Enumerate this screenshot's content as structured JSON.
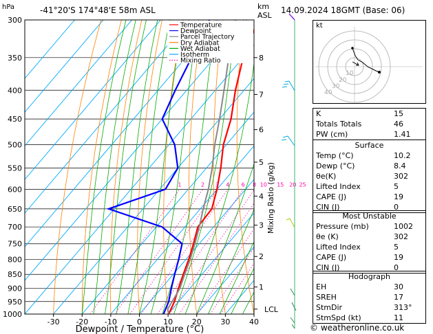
{
  "header": {
    "hpa_label": "hPa",
    "location": "-41°20'S  174°48'E  58m  ASL",
    "km_label": "km",
    "asl_label": "ASL",
    "datetime": "14.09.2024  18GMT  (Base: 06)"
  },
  "footer": {
    "xlabel": "Dewpoint / Temperature (°C)",
    "copyright": "© weatheronline.co.uk"
  },
  "chart_data": {
    "type": "line",
    "subtype": "skew-T log-P diagram",
    "pressure_levels": [
      300,
      350,
      400,
      450,
      500,
      550,
      600,
      650,
      700,
      750,
      800,
      850,
      900,
      950,
      1000
    ],
    "x_ticks": [
      -30,
      -20,
      -10,
      0,
      10,
      20,
      30,
      40
    ],
    "xlim": [
      -40,
      40
    ],
    "ylim": [
      1000,
      300
    ],
    "xlabel": "Dewpoint / Temperature (°C)",
    "ylabel": "hPa",
    "height_km_ticks": [
      {
        "label": "8",
        "p": 350
      },
      {
        "label": "7",
        "p": 407
      },
      {
        "label": "6",
        "p": 470
      },
      {
        "label": "5",
        "p": 537
      },
      {
        "label": "4",
        "p": 617
      },
      {
        "label": "3",
        "p": 695
      },
      {
        "label": "2",
        "p": 790
      },
      {
        "label": "1",
        "p": 895
      },
      {
        "label": "LCL",
        "p": 980
      }
    ],
    "mixing_ratio_label": "Mixing Ratio (g/kg)",
    "mixing_ratio_values": [
      "1",
      "2",
      "3",
      "4",
      "6",
      "8",
      "10",
      "15",
      "20",
      "25"
    ],
    "legend": [
      {
        "name": "Temperature",
        "color": "#ff0000"
      },
      {
        "name": "Dewpoint",
        "color": "#0000ff"
      },
      {
        "name": "Parcel Trajectory",
        "color": "#888888"
      },
      {
        "name": "Dry Adiabat",
        "color": "#ff8000"
      },
      {
        "name": "Wet Adiabat",
        "color": "#00aa00"
      },
      {
        "name": "Isotherm",
        "color": "#00aaff"
      },
      {
        "name": "Mixing Ratio",
        "color": "#ff00aa"
      }
    ],
    "legend_position": "top-center",
    "series": [
      {
        "name": "Temperature",
        "color": "#ff0000",
        "points": [
          [
            10.2,
            1000
          ],
          [
            8.5,
            950
          ],
          [
            6,
            900
          ],
          [
            3.5,
            850
          ],
          [
            1,
            800
          ],
          [
            -2,
            750
          ],
          [
            -5.5,
            700
          ],
          [
            -6,
            650
          ],
          [
            -10,
            600
          ],
          [
            -15,
            550
          ],
          [
            -21,
            500
          ],
          [
            -26,
            450
          ],
          [
            -33,
            400
          ],
          [
            -40,
            350
          ],
          [
            -46,
            300
          ]
        ]
      },
      {
        "name": "Dewpoint",
        "color": "#0000ff",
        "points": [
          [
            8.4,
            1000
          ],
          [
            6.5,
            950
          ],
          [
            3.5,
            900
          ],
          [
            0.5,
            850
          ],
          [
            -2.5,
            800
          ],
          [
            -6,
            750
          ],
          [
            -18,
            700
          ],
          [
            -42,
            650
          ],
          [
            -28,
            600
          ],
          [
            -30,
            550
          ],
          [
            -38,
            500
          ],
          [
            -50,
            450
          ],
          [
            -54,
            400
          ],
          [
            -58,
            350
          ],
          [
            -63,
            300
          ]
        ]
      },
      {
        "name": "Parcel Trajectory",
        "color": "#888888",
        "points": [
          [
            10.2,
            1000
          ],
          [
            8.4,
            980
          ],
          [
            6.5,
            900
          ],
          [
            4,
            850
          ],
          [
            1.5,
            800
          ],
          [
            -1.5,
            750
          ],
          [
            -5,
            700
          ],
          [
            -9,
            650
          ],
          [
            -13,
            600
          ],
          [
            -18,
            550
          ],
          [
            -24,
            500
          ],
          [
            -30,
            450
          ],
          [
            -37,
            400
          ],
          [
            -45,
            350
          ],
          [
            -54,
            300
          ]
        ]
      }
    ]
  },
  "hodograph": {
    "label": "kt",
    "ring_labels": [
      "10",
      "20",
      "30",
      "40"
    ]
  },
  "indices": {
    "basic": [
      {
        "label": "K",
        "value": "15"
      },
      {
        "label": "Totals Totals",
        "value": "46"
      },
      {
        "label": "PW (cm)",
        "value": "1.41"
      }
    ],
    "surface": {
      "title": "Surface",
      "rows": [
        {
          "label": "Temp (°C)",
          "value": "10.2"
        },
        {
          "label": "Dewp (°C)",
          "value": "8.4"
        },
        {
          "label": "θe(K)",
          "value": "302"
        },
        {
          "label": "Lifted Index",
          "value": "5"
        },
        {
          "label": "CAPE (J)",
          "value": "19"
        },
        {
          "label": "CIN (J)",
          "value": "0"
        }
      ]
    },
    "most_unstable": {
      "title": "Most Unstable",
      "rows": [
        {
          "label": "Pressure (mb)",
          "value": "1002"
        },
        {
          "label": "θe (K)",
          "value": "302"
        },
        {
          "label": "Lifted Index",
          "value": "5"
        },
        {
          "label": "CAPE (J)",
          "value": "19"
        },
        {
          "label": "CIN (J)",
          "value": "0"
        }
      ]
    },
    "hodograph": {
      "title": "Hodograph",
      "rows": [
        {
          "label": "EH",
          "value": "30"
        },
        {
          "label": "SREH",
          "value": "17"
        },
        {
          "label": "StmDir",
          "value": "313°"
        },
        {
          "label": "StmSpd (kt)",
          "value": "11"
        }
      ]
    }
  }
}
